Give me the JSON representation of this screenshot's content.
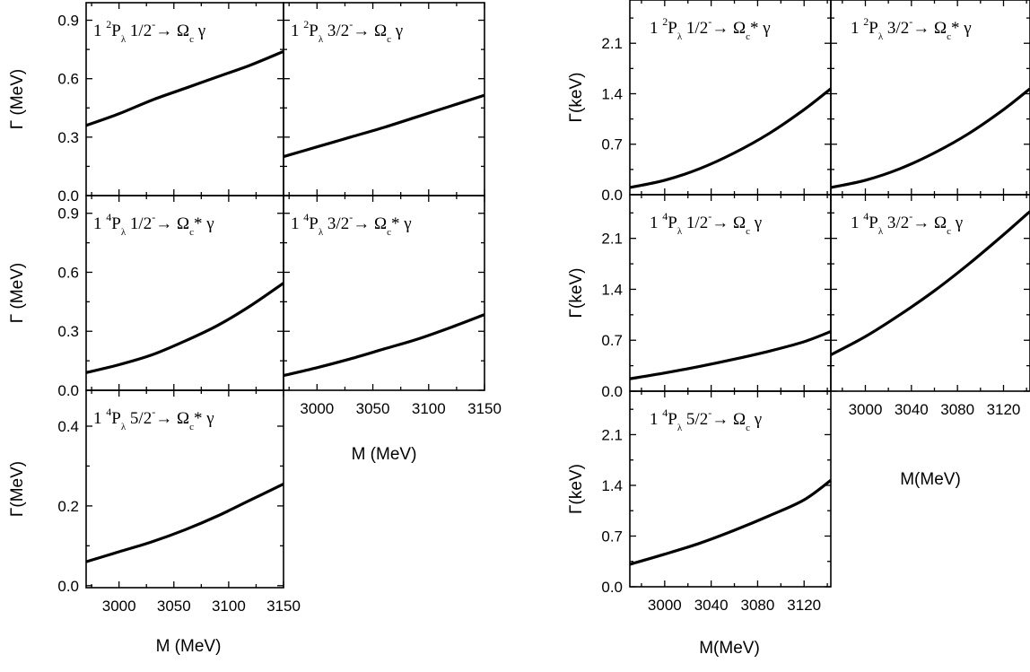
{
  "chart_data": [
    {
      "type": "line",
      "group": "left",
      "xlabel": "M (MeV)",
      "xlim": [
        2970,
        3150
      ],
      "xticks": [
        "3000",
        "3050",
        "3100",
        "3150"
      ],
      "panels": [
        {
          "label": {
            "pre": "1 ",
            "sup": "2",
            "main": "P",
            "sub": "λ",
            "state": " 1/2",
            "chg": "-",
            "arrow": "→ Ω",
            "fin": "c",
            "star": "",
            "tail": " γ"
          },
          "ylabel": "Γ (MeV)",
          "ylim": [
            0,
            0.99
          ],
          "yticks": [
            "0.0",
            "0.3",
            "0.6",
            "0.9"
          ],
          "x": [
            2970,
            3000,
            3030,
            3060,
            3090,
            3120,
            3150
          ],
          "y": [
            0.36,
            0.42,
            0.49,
            0.55,
            0.61,
            0.67,
            0.74
          ]
        },
        {
          "label": {
            "pre": "1 ",
            "sup": "2",
            "main": "P",
            "sub": "λ",
            "state": " 3/2",
            "chg": "-",
            "arrow": "→ Ω",
            "fin": "c",
            "star": "",
            "tail": " γ"
          },
          "ylabel": "",
          "ylim": [
            0,
            0.99
          ],
          "yticks": [],
          "x": [
            2970,
            3000,
            3030,
            3060,
            3090,
            3120,
            3150
          ],
          "y": [
            0.2,
            0.25,
            0.3,
            0.35,
            0.405,
            0.46,
            0.515
          ]
        },
        {
          "label": {
            "pre": "1 ",
            "sup": "4",
            "main": "P",
            "sub": "λ",
            "state": " 1/2",
            "chg": "-",
            "arrow": "→ Ω",
            "fin": "c",
            "star": "*",
            "tail": " γ"
          },
          "ylabel": "Γ (MeV)",
          "ylim": [
            0,
            0.99
          ],
          "yticks": [
            "0.0",
            "0.3",
            "0.6",
            "0.9"
          ],
          "x": [
            2970,
            3000,
            3030,
            3060,
            3090,
            3120,
            3150
          ],
          "y": [
            0.09,
            0.13,
            0.18,
            0.25,
            0.33,
            0.43,
            0.545
          ]
        },
        {
          "label": {
            "pre": "1 ",
            "sup": "4",
            "main": "P",
            "sub": "λ",
            "state": " 3/2",
            "chg": "-",
            "arrow": "→ Ω",
            "fin": "c",
            "star": "*",
            "tail": " γ"
          },
          "ylabel": "",
          "ylim": [
            0,
            0.99
          ],
          "yticks": [],
          "x": [
            2970,
            3000,
            3030,
            3060,
            3090,
            3120,
            3150
          ],
          "y": [
            0.075,
            0.115,
            0.16,
            0.21,
            0.26,
            0.32,
            0.385
          ]
        },
        {
          "label": {
            "pre": "1 ",
            "sup": "4",
            "main": "P",
            "sub": "λ",
            "state": " 5/2",
            "chg": "-",
            "arrow": "→ Ω",
            "fin": "c",
            "star": "*",
            "tail": " γ"
          },
          "ylabel": "Γ(MeV)",
          "ylim": [
            -0.005,
            0.49
          ],
          "yticks": [
            "0.0",
            "0.2",
            "0.4"
          ],
          "x": [
            2970,
            3000,
            3030,
            3060,
            3090,
            3120,
            3150
          ],
          "y": [
            0.06,
            0.085,
            0.11,
            0.14,
            0.175,
            0.215,
            0.255
          ]
        }
      ]
    },
    {
      "type": "line",
      "group": "right",
      "xlabel": "M(MeV)",
      "xlim": [
        2970,
        3143
      ],
      "xticks": [
        "3000",
        "3040",
        "3080",
        "3120"
      ],
      "panels": [
        {
          "label": {
            "pre": "1 ",
            "sup": "2",
            "main": "P",
            "sub": "λ",
            "state": " 1/2",
            "chg": "-",
            "arrow": "→ Ω",
            "fin": "c",
            "star": "*",
            "tail": " γ"
          },
          "ylabel": "Γ(keV)",
          "ylim": [
            0,
            2.7
          ],
          "yticks": [
            "0.0",
            "0.7",
            "1.4",
            "2.1"
          ],
          "x": [
            2970,
            3000,
            3030,
            3060,
            3090,
            3120,
            3143
          ],
          "y": [
            0.1,
            0.2,
            0.36,
            0.58,
            0.85,
            1.18,
            1.47
          ]
        },
        {
          "label": {
            "pre": "1 ",
            "sup": "2",
            "main": "P",
            "sub": "λ",
            "state": " 3/2",
            "chg": "-",
            "arrow": "→ Ω",
            "fin": "c",
            "star": "*",
            "tail": " γ"
          },
          "ylabel": "",
          "ylim": [
            0,
            2.7
          ],
          "yticks": [],
          "x": [
            2970,
            3000,
            3030,
            3060,
            3090,
            3120,
            3143
          ],
          "y": [
            0.1,
            0.2,
            0.36,
            0.58,
            0.85,
            1.18,
            1.47
          ]
        },
        {
          "label": {
            "pre": "1 ",
            "sup": "4",
            "main": "P",
            "sub": "λ",
            "state": " 1/2",
            "chg": "-",
            "arrow": "→ Ω",
            "fin": "c",
            "star": "",
            "tail": " γ"
          },
          "ylabel": "Γ(keV)",
          "ylim": [
            0,
            2.7
          ],
          "yticks": [
            "0.0",
            "0.7",
            "1.4",
            "2.1"
          ],
          "x": [
            2970,
            3000,
            3030,
            3060,
            3090,
            3120,
            3143
          ],
          "y": [
            0.17,
            0.25,
            0.34,
            0.44,
            0.55,
            0.68,
            0.82
          ]
        },
        {
          "label": {
            "pre": "1 ",
            "sup": "4",
            "main": "P",
            "sub": "λ",
            "state": " 3/2",
            "chg": "-",
            "arrow": "→ Ω",
            "fin": "c",
            "star": "",
            "tail": " γ"
          },
          "ylabel": "",
          "ylim": [
            0,
            2.7
          ],
          "yticks": [],
          "x": [
            2970,
            3000,
            3030,
            3060,
            3090,
            3120,
            3143
          ],
          "y": [
            0.5,
            0.75,
            1.05,
            1.38,
            1.75,
            2.15,
            2.47
          ]
        },
        {
          "label": {
            "pre": "1 ",
            "sup": "4",
            "main": "P",
            "sub": "λ",
            "state": " 5/2",
            "chg": "-",
            "arrow": "→ Ω",
            "fin": "c",
            "star": "",
            "tail": " γ"
          },
          "ylabel": "Γ(keV)",
          "ylim": [
            0,
            2.7
          ],
          "yticks": [
            "0.0",
            "0.7",
            "1.4",
            "2.1"
          ],
          "x": [
            2970,
            3000,
            3030,
            3060,
            3090,
            3120,
            3143
          ],
          "y": [
            0.31,
            0.45,
            0.6,
            0.78,
            0.98,
            1.2,
            1.47
          ]
        }
      ]
    }
  ]
}
